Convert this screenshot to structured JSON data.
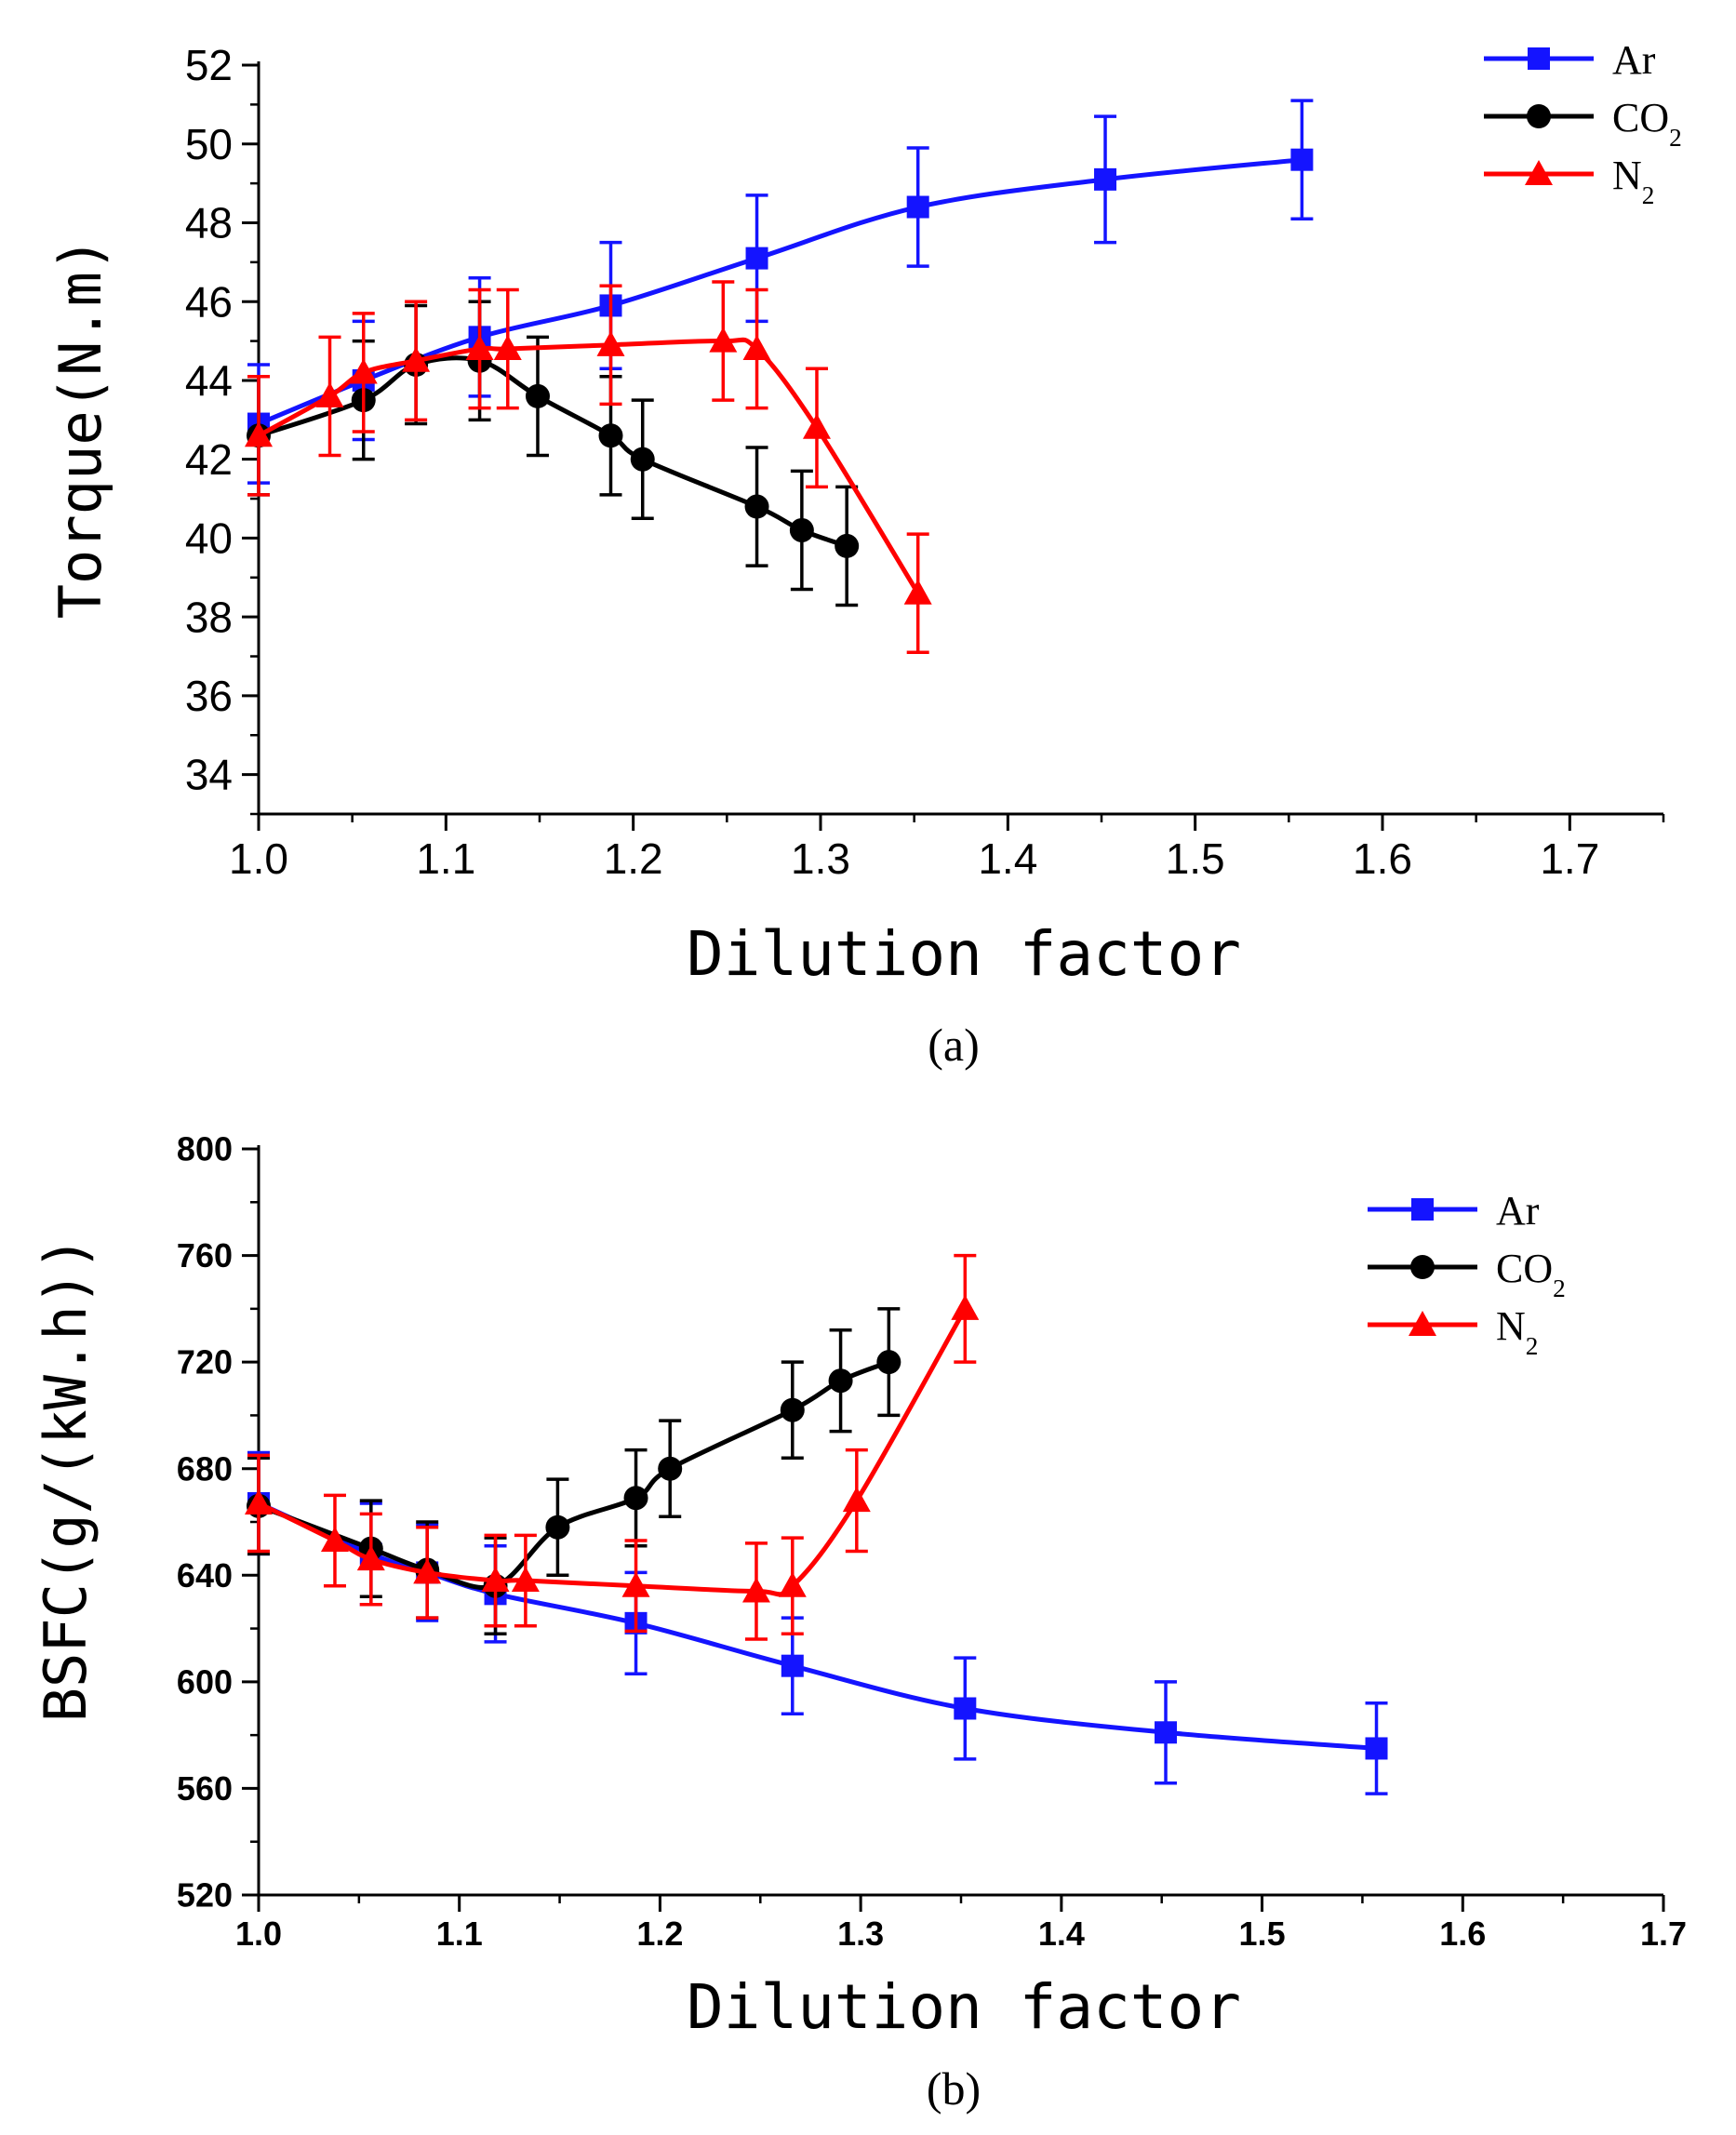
{
  "chart_data": [
    {
      "type": "line",
      "panel_label": "(a)",
      "xlabel": "Dilution factor",
      "ylabel": "Torque(N.m)",
      "xlim": [
        1.0,
        1.75
      ],
      "ylim": [
        33,
        52
      ],
      "xticks": [
        1.0,
        1.1,
        1.2,
        1.3,
        1.4,
        1.5,
        1.6,
        1.7
      ],
      "xtick_labels": [
        "1.0",
        "1.1",
        "1.2",
        "1.3",
        "1.4",
        "1.5",
        "1.6",
        "1.7"
      ],
      "yticks": [
        34,
        36,
        38,
        40,
        42,
        44,
        46,
        48,
        50,
        52
      ],
      "ytick_labels": [
        "34",
        "36",
        "38",
        "40",
        "42",
        "44",
        "46",
        "48",
        "50",
        "52"
      ],
      "legend_position": "top-right",
      "series": [
        {
          "name": "Ar",
          "name_main": "Ar",
          "name_sub": "",
          "color": "#1414ff",
          "marker": "square",
          "x": [
            1.0,
            1.056,
            1.118,
            1.188,
            1.266,
            1.352,
            1.452,
            1.557
          ],
          "y": [
            42.9,
            44.0,
            45.1,
            45.9,
            47.1,
            48.4,
            49.1,
            49.6
          ],
          "err": [
            1.5,
            1.5,
            1.5,
            1.6,
            1.6,
            1.5,
            1.6,
            1.5
          ]
        },
        {
          "name": "CO2",
          "name_main": "CO",
          "name_sub": "2",
          "color": "#000000",
          "marker": "circle",
          "x": [
            1.0,
            1.056,
            1.084,
            1.118,
            1.149,
            1.188,
            1.205,
            1.266,
            1.29,
            1.314
          ],
          "y": [
            42.6,
            43.5,
            44.4,
            44.5,
            43.6,
            42.6,
            42.0,
            40.8,
            40.2,
            39.8
          ],
          "err": [
            1.5,
            1.5,
            1.5,
            1.5,
            1.5,
            1.5,
            1.5,
            1.5,
            1.5,
            1.5
          ]
        },
        {
          "name": "N2",
          "name_main": "N",
          "name_sub": "2",
          "color": "#ff0000",
          "marker": "triangle",
          "x": [
            1.0,
            1.038,
            1.056,
            1.084,
            1.118,
            1.133,
            1.188,
            1.248,
            1.266,
            1.298,
            1.352
          ],
          "y": [
            42.6,
            43.6,
            44.2,
            44.5,
            44.8,
            44.8,
            44.9,
            45.0,
            44.8,
            42.8,
            38.6
          ],
          "err": [
            1.5,
            1.5,
            1.5,
            1.5,
            1.5,
            1.5,
            1.5,
            1.5,
            1.5,
            1.5,
            1.5
          ]
        }
      ]
    },
    {
      "type": "line",
      "panel_label": "(b)",
      "xlabel": "Dilution factor",
      "ylabel": "BSFC(g/(kW.h))",
      "xlim": [
        1.0,
        1.7
      ],
      "ylim": [
        520,
        800
      ],
      "xticks": [
        1.0,
        1.1,
        1.2,
        1.3,
        1.4,
        1.5,
        1.6,
        1.7
      ],
      "xtick_labels": [
        "1.0",
        "1.1",
        "1.2",
        "1.3",
        "1.4",
        "1.5",
        "1.6",
        "1.7"
      ],
      "yticks": [
        520,
        560,
        600,
        640,
        680,
        720,
        760,
        800
      ],
      "ytick_labels": [
        "520",
        "560",
        "600",
        "640",
        "680",
        "720",
        "760",
        "800"
      ],
      "legend_position": "top-right",
      "series": [
        {
          "name": "Ar",
          "name_main": "Ar",
          "name_sub": "",
          "color": "#1414ff",
          "marker": "square",
          "x": [
            1.0,
            1.056,
            1.084,
            1.118,
            1.188,
            1.266,
            1.352,
            1.452,
            1.557
          ],
          "y": [
            667,
            648,
            641,
            633,
            622,
            606,
            590,
            581,
            575
          ],
          "err": [
            19,
            19,
            18,
            18,
            19,
            18,
            19,
            19,
            17
          ]
        },
        {
          "name": "CO2",
          "name_main": "CO",
          "name_sub": "2",
          "color": "#000000",
          "marker": "circle",
          "x": [
            1.0,
            1.056,
            1.084,
            1.118,
            1.149,
            1.188,
            1.205,
            1.266,
            1.29,
            1.314
          ],
          "y": [
            666,
            650,
            642,
            636,
            658,
            669,
            680,
            702,
            713,
            720
          ],
          "err": [
            18,
            18,
            18,
            18,
            18,
            18,
            18,
            18,
            19,
            20
          ]
        },
        {
          "name": "N2",
          "name_main": "N",
          "name_sub": "2",
          "color": "#ff0000",
          "marker": "triangle",
          "x": [
            1.0,
            1.038,
            1.056,
            1.084,
            1.118,
            1.133,
            1.188,
            1.248,
            1.266,
            1.298,
            1.352
          ],
          "y": [
            667,
            653,
            646,
            641,
            638,
            638,
            636,
            634,
            636,
            668,
            740
          ],
          "err": [
            18,
            17,
            17,
            17,
            17,
            17,
            17,
            18,
            18,
            19,
            20
          ]
        }
      ]
    }
  ]
}
